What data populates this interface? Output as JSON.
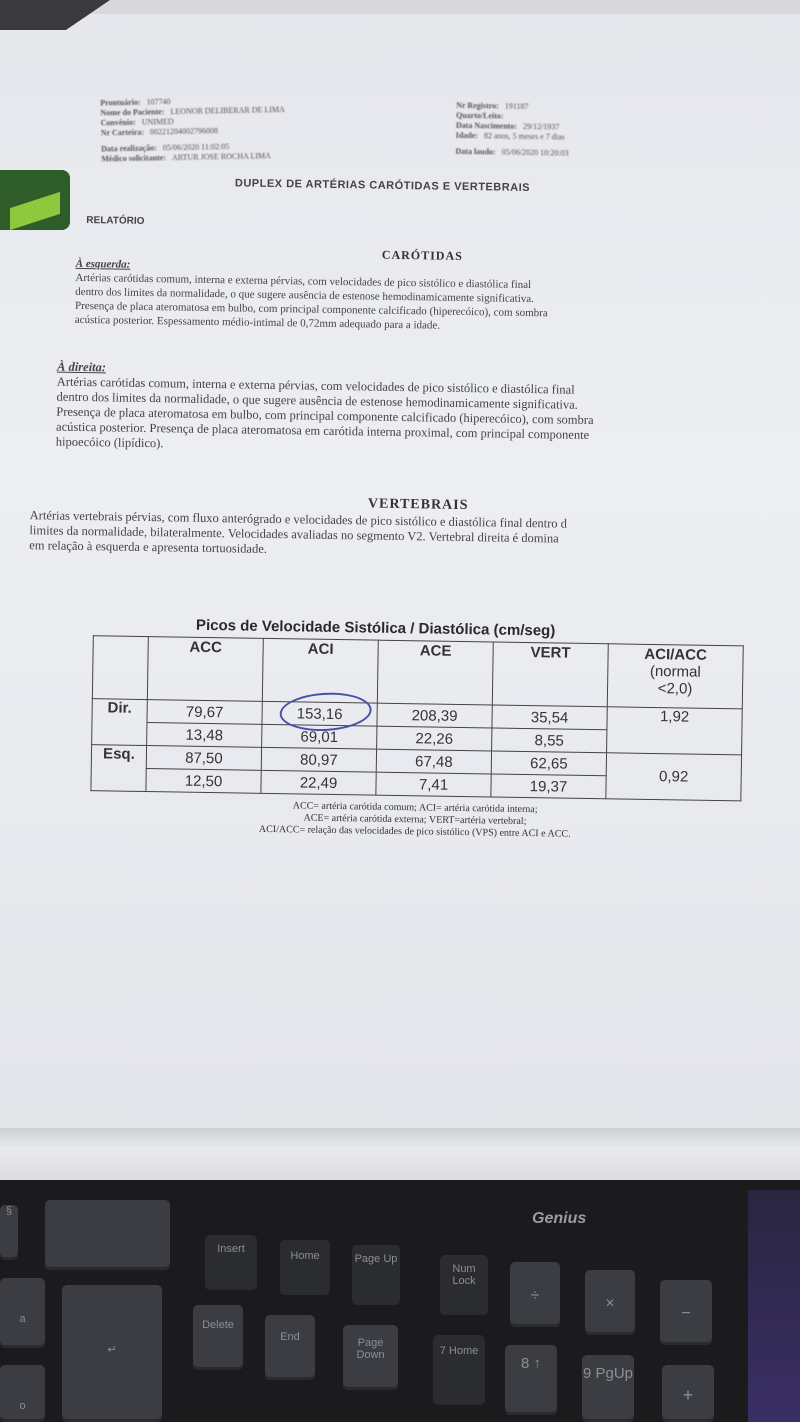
{
  "header": {
    "left": [
      {
        "label": "Prontuário:",
        "value": "107740"
      },
      {
        "label": "Nome do Paciente:",
        "value": "LEONOR DELIBERAR DE LIMA"
      },
      {
        "label": "Convênio:",
        "value": "UNIMED"
      },
      {
        "label": "Nr Carteira:",
        "value": "00221204002796008"
      },
      {
        "label": "Data realização:",
        "value": "05/06/2020 11:02:05"
      },
      {
        "label": "Médico solicitante:",
        "value": "ARTUR JOSE ROCHA LIMA"
      }
    ],
    "right": [
      {
        "label": "Nr Registro:",
        "value": "191187"
      },
      {
        "label": "Quarto/Leito:",
        "value": ""
      },
      {
        "label": "Data Nascimento:",
        "value": "29/12/1937"
      },
      {
        "label": "Idade:",
        "value": "82 anos, 5 meses e 7 dias"
      },
      {
        "label": "Data laudo:",
        "value": "05/06/2020 10:20:03"
      }
    ]
  },
  "title": "DUPLEX DE ARTÉRIAS CARÓTIDAS E VERTEBRAIS",
  "relatorio": "RELATÓRIO",
  "carotidas": {
    "heading": "CARÓTIDAS",
    "esquerda": {
      "label": "À esquerda:",
      "lines": [
        "Artérias carótidas comum, interna e externa pérvias, com velocidades de pico sistólico e diastólica final",
        "dentro dos limites da normalidade, o que sugere ausência de estenose hemodinamicamente significativa.",
        "Presença de placa ateromatosa em bulbo, com principal componente calcificado (hiperecóico), com sombra",
        "acústica posterior. Espessamento médio-intimal de 0,72mm adequado para a idade."
      ]
    },
    "direita": {
      "label": "À direita:",
      "lines": [
        "Artérias carótidas comum, interna e externa pérvias, com velocidades de pico sistólico e diastólica final",
        "dentro dos limites da normalidade, o que sugere ausência de estenose hemodinamicamente significativa.",
        "Presença de placa ateromatosa em bulbo, com principal componente calcificado (hiperecóico), com sombra",
        "acústica posterior. Presença de placa ateromatosa em carótida interna proximal, com principal componente",
        "hipoecóico (lipídico)."
      ]
    }
  },
  "vertebrais": {
    "heading": "VERTEBRAIS",
    "lines": [
      "Artérias vertebrais pérvias, com fluxo anterógrado e velocidades de pico sistólico e diastólica final dentro d",
      "limites da normalidade, bilateralmente. Velocidades avaliadas no segmento V2. Vertebral direita é domina",
      "em relação à esquerda e apresenta tortuosidade."
    ]
  },
  "table": {
    "title": "Picos de Velocidade Sistólica / Diastólica (cm/seg)",
    "columns": [
      "ACC",
      "ACI",
      "ACE",
      "VERT"
    ],
    "ratio_header": [
      "ACI/ACC",
      "(normal",
      "<2,0)"
    ],
    "rows": [
      {
        "side": "Dir.",
        "systolic": [
          "79,67",
          "153,16",
          "208,39",
          "35,54"
        ],
        "diastolic": [
          "13,48",
          "69,01",
          "22,26",
          "8,55"
        ],
        "ratio": "1,92"
      },
      {
        "side": "Esq.",
        "systolic": [
          "87,50",
          "80,97",
          "67,48",
          "62,65"
        ],
        "diastolic": [
          "12,50",
          "22,49",
          "7,41",
          "19,37"
        ],
        "ratio": "0,92"
      }
    ],
    "circled_value": "153,16",
    "annotation_color": "#4a50a8",
    "footnotes": [
      "ACC= artéria carótida comum; ACI= artéria carótida interna;",
      "ACE= artéria carótida externa; VERT=artéria vertebral;",
      "ACI/ACC= relação das velocidades de pico sistólico (VPS) entre ACI e ACC."
    ]
  },
  "keyboard": {
    "brand": "Genius",
    "keys": [
      "Insert",
      "Home",
      "Page Up",
      "Num Lock",
      "÷",
      "×",
      "−",
      "Delete",
      "End",
      "Page Down",
      "7 Home",
      "8 ↑",
      "9 PgUp",
      "+",
      "↵",
      "a",
      "o",
      "§"
    ]
  }
}
